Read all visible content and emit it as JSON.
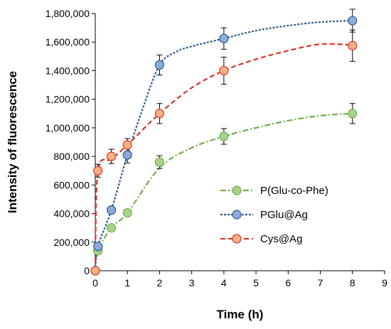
{
  "chart_data": {
    "type": "scatter",
    "xlabel": "Time (h)",
    "ylabel": "Intensity of fluorescence",
    "xlim": [
      0,
      9
    ],
    "ylim": [
      0,
      1800000
    ],
    "x_ticks": [
      "0",
      "1",
      "2",
      "3",
      "4",
      "5",
      "6",
      "7",
      "8",
      "9"
    ],
    "y_ticks": [
      "0",
      "200,000",
      "400,000",
      "600,000",
      "800,000",
      "1,000,000",
      "1,200,000",
      "1,400,000",
      "1,600,000",
      "1,800,000"
    ],
    "grid": false,
    "legend_position": "bottom-right",
    "series": [
      {
        "name": "P(Glu-co-Phe)",
        "color": "#70ad47",
        "fill": "#a9d18e",
        "line_style": "dash-dot",
        "x": [
          0,
          0.083,
          0.5,
          1,
          2,
          4,
          8
        ],
        "y": [
          0,
          140000,
          300000,
          405000,
          760000,
          940000,
          1100000
        ],
        "error": [
          0,
          20000,
          20000,
          20000,
          45000,
          55000,
          70000
        ],
        "trend": [
          [
            0,
            0
          ],
          [
            0.083,
            140000
          ],
          [
            0.5,
            300000
          ],
          [
            1,
            405000
          ],
          [
            2,
            720000
          ],
          [
            3,
            860000
          ],
          [
            4,
            940000
          ],
          [
            5,
            1000000
          ],
          [
            6,
            1050000
          ],
          [
            7,
            1085000
          ],
          [
            8,
            1100000
          ]
        ]
      },
      {
        "name": "PGlu@Ag",
        "color": "#2e5c8a",
        "fill": "#8faadc",
        "line_style": "dotted",
        "x": [
          0,
          0.083,
          0.5,
          1,
          2,
          4,
          8
        ],
        "y": [
          0,
          170000,
          425000,
          810000,
          1440000,
          1625000,
          1750000
        ],
        "error": [
          0,
          20000,
          20000,
          55000,
          70000,
          75000,
          80000
        ],
        "trend": [
          [
            0,
            0
          ],
          [
            0.083,
            170000
          ],
          [
            0.5,
            425000
          ],
          [
            1,
            810000
          ],
          [
            1.5,
            1150000
          ],
          [
            2,
            1440000
          ],
          [
            2.5,
            1530000
          ],
          [
            3,
            1570000
          ],
          [
            4,
            1625000
          ],
          [
            5,
            1680000
          ],
          [
            6,
            1715000
          ],
          [
            7,
            1740000
          ],
          [
            8,
            1750000
          ]
        ]
      },
      {
        "name": "Cys@Ag",
        "color": "#d9342b",
        "fill": "#f4b183",
        "line_style": "dashed",
        "x": [
          0,
          0.083,
          0.5,
          1,
          2,
          4,
          8
        ],
        "y": [
          0,
          700000,
          800000,
          880000,
          1100000,
          1400000,
          1575000
        ],
        "error": [
          0,
          45000,
          50000,
          45000,
          70000,
          95000,
          110000
        ],
        "trend": [
          [
            0,
            0
          ],
          [
            0.083,
            700000
          ],
          [
            0.5,
            780000
          ],
          [
            1,
            880000
          ],
          [
            2,
            1100000
          ],
          [
            3,
            1280000
          ],
          [
            4,
            1400000
          ],
          [
            5,
            1480000
          ],
          [
            6,
            1540000
          ],
          [
            7,
            1585000
          ],
          [
            8,
            1580000
          ]
        ]
      }
    ]
  }
}
